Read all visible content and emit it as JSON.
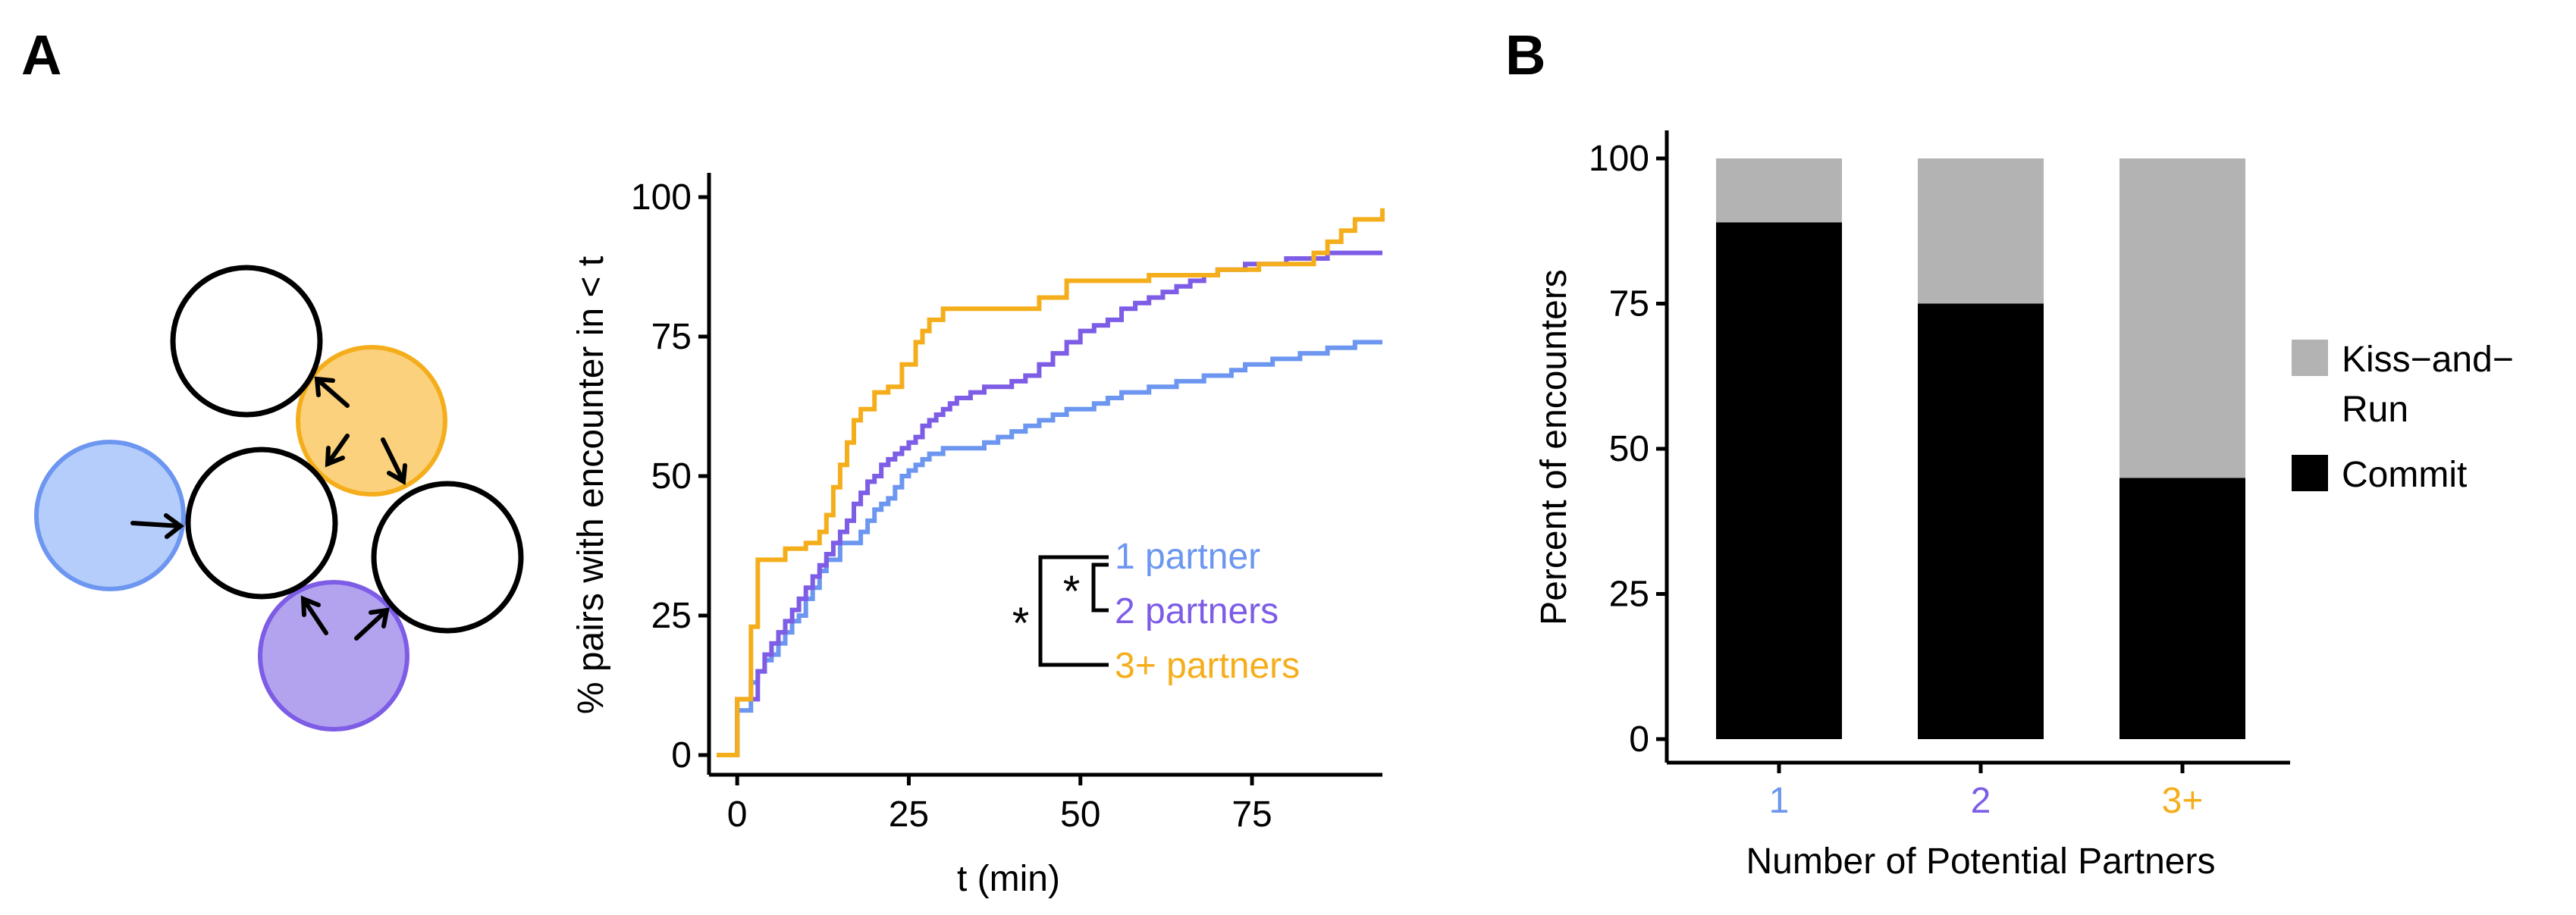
{
  "panels": {
    "a_letter": "A",
    "b_letter": "B"
  },
  "colors": {
    "one": "#6c96f0",
    "two": "#7d5ce6",
    "three": "#f5ae1b",
    "kiss": "#b3b3b3",
    "commit": "#000000",
    "circle_one_fill": "#b5cdfa",
    "circle_two_fill": "#b3a3ef",
    "circle_three_fill": "#fbd17e"
  },
  "stats": {
    "outer_star": "*",
    "inner_star": "*"
  },
  "chart_data": [
    {
      "type": "line",
      "step": true,
      "xlabel": "t (min)",
      "ylabel": "% pairs with encounter in < t",
      "xlim": [
        -3,
        94
      ],
      "ylim": [
        0,
        100
      ],
      "xticks": [
        0,
        25,
        50,
        75
      ],
      "yticks": [
        0,
        25,
        50,
        75,
        100
      ],
      "legend_position": "inside-lower-right",
      "series": [
        {
          "name": "1 partner",
          "color": "#6c96f0",
          "x": [
            -3,
            0,
            1,
            2,
            3,
            4,
            5,
            6,
            7,
            8,
            9,
            10,
            11,
            12,
            13,
            15,
            17,
            18,
            19,
            20,
            21,
            22,
            23,
            24,
            25,
            26,
            27,
            28,
            30,
            32,
            34,
            36,
            38,
            40,
            42,
            44,
            46,
            48,
            50,
            52,
            54,
            56,
            58,
            60,
            62,
            64,
            66,
            68,
            70,
            72,
            74,
            76,
            78,
            80,
            82,
            84,
            86,
            88,
            90,
            94
          ],
          "y": [
            0,
            8,
            8,
            13,
            15,
            17,
            18,
            20,
            22,
            24,
            25,
            28,
            30,
            33,
            35,
            38,
            38,
            40,
            42,
            44,
            45,
            46,
            48,
            50,
            51,
            52,
            53,
            54,
            55,
            55,
            55,
            56,
            57,
            58,
            59,
            60,
            61,
            62,
            62,
            63,
            64,
            65,
            65,
            66,
            66,
            67,
            67,
            68,
            68,
            69,
            70,
            70,
            71,
            71,
            72,
            72,
            73,
            73,
            74,
            74
          ]
        },
        {
          "name": "2 partners",
          "color": "#7d5ce6",
          "x": [
            -3,
            0,
            2,
            3,
            4,
            5,
            6,
            7,
            8,
            9,
            10,
            11,
            12,
            13,
            14,
            15,
            16,
            17,
            18,
            19,
            20,
            21,
            22,
            23,
            24,
            25,
            26,
            27,
            28,
            29,
            30,
            31,
            32,
            34,
            36,
            38,
            40,
            42,
            44,
            46,
            48,
            50,
            52,
            54,
            56,
            58,
            60,
            62,
            64,
            66,
            68,
            70,
            72,
            74,
            76,
            78,
            80,
            82,
            84,
            86,
            88,
            90,
            94
          ],
          "y": [
            0,
            10,
            10,
            15,
            18,
            20,
            22,
            24,
            26,
            28,
            30,
            32,
            34,
            36,
            38,
            40,
            42,
            45,
            47,
            49,
            50,
            52,
            53,
            54,
            55,
            56,
            57,
            59,
            60,
            61,
            62,
            63,
            64,
            65,
            66,
            66,
            67,
            68,
            70,
            72,
            74,
            76,
            77,
            78,
            80,
            81,
            82,
            83,
            84,
            85,
            86,
            87,
            87,
            88,
            88,
            88,
            89,
            89,
            89,
            90,
            90,
            90,
            90
          ]
        },
        {
          "name": "3+ partners",
          "color": "#f5ae1b",
          "x": [
            -3,
            0,
            2,
            3,
            5,
            7,
            10,
            12,
            13,
            14,
            15,
            16,
            17,
            18,
            20,
            22,
            24,
            26,
            27,
            28,
            30,
            36,
            40,
            44,
            48,
            50,
            60,
            70,
            76,
            80,
            84,
            86,
            88,
            90,
            94
          ],
          "y": [
            0,
            10,
            23,
            35,
            35,
            37,
            38,
            40,
            43,
            48,
            52,
            56,
            60,
            62,
            65,
            66,
            70,
            74,
            76,
            78,
            80,
            80,
            80,
            82,
            85,
            85,
            86,
            87,
            88,
            88,
            90,
            92,
            94,
            96,
            98
          ]
        }
      ]
    },
    {
      "type": "bar",
      "stacked": true,
      "xlabel": "Number of Potential Partners",
      "ylabel": "Percent of encounters",
      "ylim": [
        0,
        100
      ],
      "yticks": [
        0,
        25,
        50,
        75,
        100
      ],
      "categories": [
        "1",
        "2",
        "3+"
      ],
      "category_colors": [
        "#6c96f0",
        "#7d5ce6",
        "#f5ae1b"
      ],
      "legend_position": "right",
      "legend_labels": [
        "Kiss−and−",
        "Run",
        "Commit"
      ],
      "series": [
        {
          "name": "Commit",
          "color": "#000000",
          "values": [
            89,
            75,
            45
          ]
        },
        {
          "name": "Kiss-and-Run",
          "color": "#b3b3b3",
          "values": [
            11,
            25,
            55
          ]
        }
      ]
    }
  ]
}
